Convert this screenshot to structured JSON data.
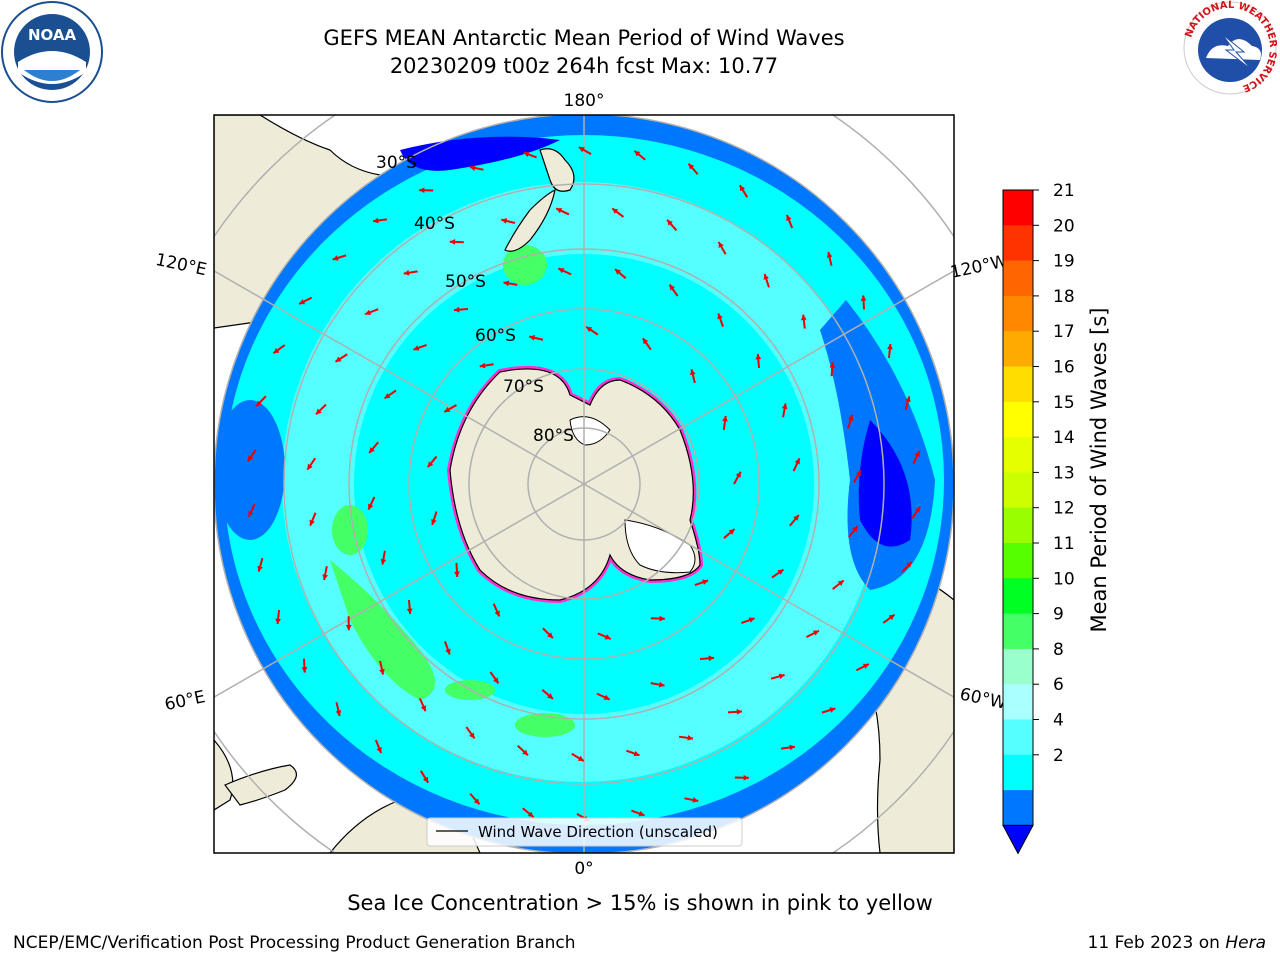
{
  "title": {
    "line1": "GEFS MEAN Antarctic Mean Period of Wind Waves",
    "line2": "20230209 t00z 264h fcst   Max: 10.77"
  },
  "map": {
    "lon_labels": {
      "top": "180°",
      "bottom": "0°",
      "upper_left": "120°E",
      "upper_right": "120°W",
      "lower_left": "60°E",
      "lower_right": "60°W"
    },
    "lat_labels": [
      "30°S",
      "40°S",
      "50°S",
      "60°S",
      "70°S",
      "80°S"
    ],
    "legend_label": "Wind Wave Direction (unscaled)"
  },
  "colorbar": {
    "label": "Mean Period of Wind Waves [s]",
    "ticks": [
      "21",
      "20",
      "19",
      "18",
      "17",
      "16",
      "15",
      "14",
      "13",
      "12",
      "11",
      "10",
      "9",
      "8",
      "6",
      "4",
      "2"
    ],
    "colors": [
      "#ff0000",
      "#ff3300",
      "#ff6600",
      "#ff8800",
      "#ffaa00",
      "#ffdd00",
      "#ffff00",
      "#e6ff00",
      "#ccff00",
      "#99ff00",
      "#55ff00",
      "#00ff22",
      "#44ff66",
      "#99ffcc",
      "#aaffff",
      "#55ffff",
      "#00ffff",
      "#0077ff",
      "#0000ff"
    ],
    "extend": "min"
  },
  "notes": {
    "sea_ice": "Sea Ice Concentration > 15% is shown in pink to yellow"
  },
  "footer": {
    "left": "NCEP/EMC/Verification Post Processing Product Generation Branch",
    "right_prefix": "11 Feb 2023 on ",
    "right_host": "Hera"
  },
  "logos": {
    "noaa": "NOAA",
    "nws_ring": "NATIONAL WEATHER SERVICE"
  }
}
